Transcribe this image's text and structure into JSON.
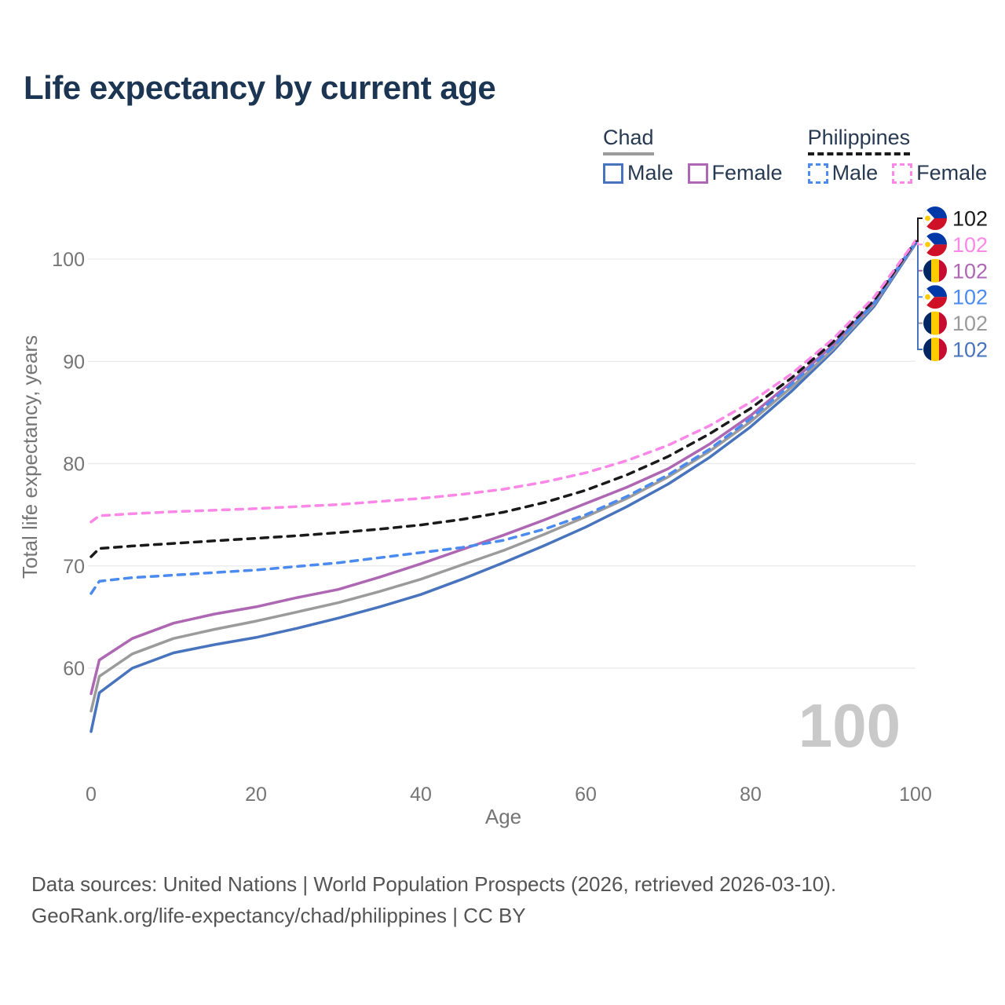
{
  "page": {
    "title": "Life expectancy by current age"
  },
  "legend": {
    "groups": [
      {
        "name": "Chad",
        "style": "solid",
        "underline_color": "#9b9b9b",
        "items": [
          {
            "label": "Male",
            "color": "#4873bd"
          },
          {
            "label": "Female",
            "color": "#ae67b2"
          }
        ]
      },
      {
        "name": "Philippines",
        "style": "dashed",
        "underline_color": "#1a1a1a",
        "items": [
          {
            "label": "Male",
            "color": "#4b8bf0"
          },
          {
            "label": "Female",
            "color": "#fb87e7"
          }
        ]
      }
    ]
  },
  "chart_data": {
    "type": "line",
    "title": "Life expectancy by current age",
    "xlabel": "Age",
    "ylabel": "Total life expectancy, years",
    "xlim": [
      0,
      100
    ],
    "ylim": [
      52,
      103
    ],
    "xticks": [
      0,
      20,
      40,
      60,
      80,
      100
    ],
    "yticks": [
      60,
      70,
      80,
      90,
      100
    ],
    "grid": "horizontal",
    "legend_position": "top-right",
    "age_indicator": "100",
    "x": [
      0,
      1,
      5,
      10,
      15,
      20,
      25,
      30,
      35,
      40,
      45,
      50,
      55,
      60,
      65,
      70,
      75,
      80,
      85,
      90,
      95,
      100
    ],
    "series": [
      {
        "name": "Chad Male",
        "country": "Chad",
        "sex": "Male",
        "color": "#4873bd",
        "dash": "solid",
        "flag": "td",
        "end_label": "102",
        "label_row": 5,
        "values": [
          53.8,
          57.6,
          60.0,
          61.5,
          62.3,
          63.0,
          63.9,
          64.9,
          66.0,
          67.2,
          68.7,
          70.3,
          72.0,
          73.8,
          75.8,
          78.0,
          80.6,
          83.6,
          87.1,
          91.0,
          95.4,
          101.5
        ]
      },
      {
        "name": "Chad Total",
        "country": "Chad",
        "sex": "Both",
        "color": "#9b9b9b",
        "dash": "solid",
        "flag": "td",
        "end_label": "102",
        "label_row": 4,
        "values": [
          55.8,
          59.2,
          61.4,
          62.9,
          63.8,
          64.6,
          65.5,
          66.4,
          67.5,
          68.7,
          70.1,
          71.5,
          73.1,
          74.8,
          76.6,
          78.7,
          81.2,
          84.1,
          87.5,
          91.2,
          95.6,
          101.6
        ]
      },
      {
        "name": "Chad Female",
        "country": "Chad",
        "sex": "Female",
        "color": "#ae67b2",
        "dash": "solid",
        "flag": "td",
        "end_label": "102",
        "label_row": 2,
        "values": [
          57.5,
          60.8,
          62.9,
          64.4,
          65.3,
          66.0,
          66.9,
          67.7,
          68.9,
          70.2,
          71.6,
          73.0,
          74.5,
          76.1,
          77.7,
          79.5,
          81.9,
          84.7,
          88.0,
          91.6,
          95.8,
          101.7
        ]
      },
      {
        "name": "Philippines Male",
        "country": "Philippines",
        "sex": "Male",
        "color": "#4b8bf0",
        "dash": "dashed",
        "flag": "ph",
        "end_label": "102",
        "label_row": 3,
        "values": [
          67.3,
          68.5,
          68.85,
          69.1,
          69.35,
          69.6,
          69.95,
          70.3,
          70.8,
          71.3,
          71.8,
          72.5,
          73.6,
          75.0,
          76.8,
          78.9,
          81.4,
          84.4,
          87.8,
          91.4,
          95.7,
          101.65
        ]
      },
      {
        "name": "Philippines Total",
        "country": "Philippines",
        "sex": "Both",
        "color": "#1a1a1a",
        "dash": "dashed",
        "flag": "ph",
        "end_label": "102",
        "label_row": 0,
        "values": [
          70.9,
          71.7,
          71.95,
          72.2,
          72.45,
          72.7,
          72.95,
          73.25,
          73.6,
          74.0,
          74.55,
          75.25,
          76.2,
          77.4,
          78.9,
          80.7,
          82.9,
          85.4,
          88.4,
          91.9,
          96.0,
          101.75
        ]
      },
      {
        "name": "Philippines Female",
        "country": "Philippines",
        "sex": "Female",
        "color": "#fb87e7",
        "dash": "dashed",
        "flag": "ph",
        "end_label": "102",
        "label_row": 1,
        "values": [
          74.3,
          74.9,
          75.1,
          75.3,
          75.45,
          75.6,
          75.8,
          76.0,
          76.3,
          76.6,
          77.0,
          77.5,
          78.2,
          79.1,
          80.3,
          81.8,
          83.7,
          86.0,
          88.8,
          92.2,
          96.3,
          101.8
        ]
      }
    ]
  },
  "footer": {
    "line1": "Data sources: United Nations | World Population Prospects (2026, retrieved 2026-03-10).",
    "line2": "GeoRank.org/life-expectancy/chad/philippines | CC BY"
  }
}
